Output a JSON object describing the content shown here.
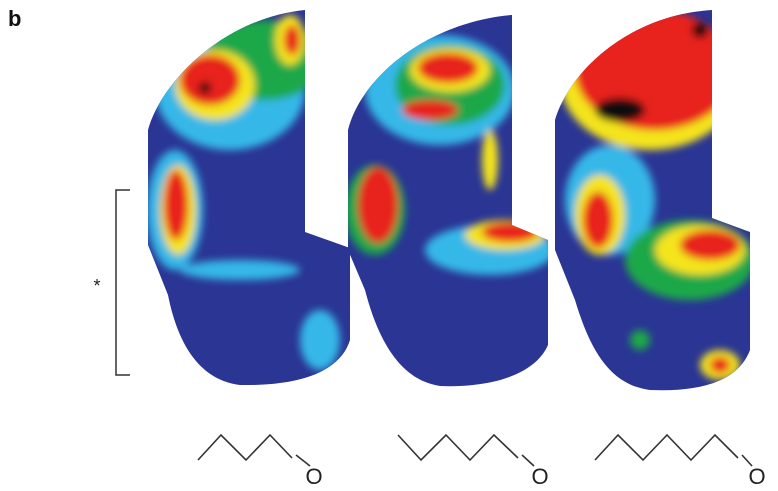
{
  "panel_label": "b",
  "bracket_label": "*",
  "molecules": [
    {
      "atom": "O"
    },
    {
      "atom": "O"
    },
    {
      "atom": "O"
    }
  ]
}
